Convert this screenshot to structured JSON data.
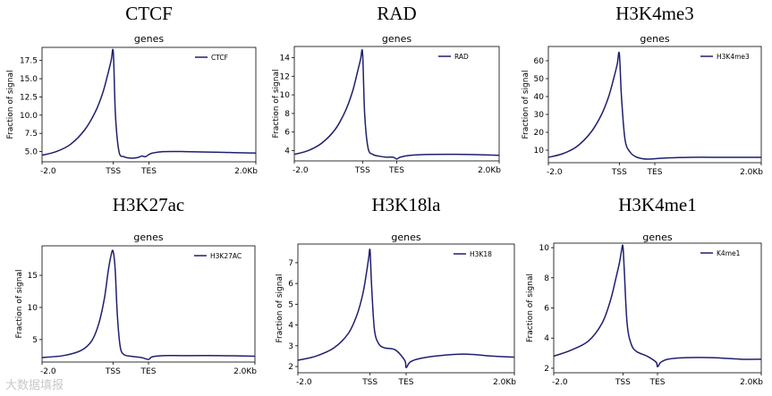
{
  "chart_data": [
    {
      "type": "line",
      "title": "CTCF",
      "subtitle": "genes",
      "ylabel": "Fraction of signal",
      "legend": "CTCF",
      "legend_position": "top-right",
      "ylim": [
        3.6,
        19.3
      ],
      "yticks": [
        5.0,
        7.5,
        10.0,
        12.5,
        15.0,
        17.5
      ],
      "ytick_labels": [
        "5.0",
        "7.5",
        "10.0",
        "12.5",
        "15.0",
        "17.5"
      ],
      "xticks": [
        0,
        100,
        150,
        300
      ],
      "xtick_labels": [
        "-2.0",
        "TSS",
        "TES",
        "2.0Kb"
      ],
      "series": [
        {
          "name": "CTCF",
          "x": [
            0,
            20,
            40,
            60,
            75,
            85,
            92,
            97,
            100,
            103,
            108,
            115,
            125,
            135,
            140,
            145,
            150,
            155,
            170,
            200,
            250,
            300
          ],
          "y": [
            4.5,
            5.0,
            6.0,
            8.0,
            10.5,
            13.0,
            15.5,
            17.5,
            18.6,
            10.0,
            5.0,
            4.3,
            4.1,
            4.2,
            4.4,
            4.3,
            4.6,
            4.8,
            5.0,
            5.0,
            4.9,
            4.8
          ]
        }
      ]
    },
    {
      "type": "line",
      "title": "RAD",
      "subtitle": "genes",
      "ylabel": "Fraction of signal",
      "legend": "RAD",
      "legend_position": "top-right",
      "ylim": [
        2.9,
        15.2
      ],
      "yticks": [
        4,
        6,
        8,
        10,
        12,
        14
      ],
      "ytick_labels": [
        "4",
        "6",
        "8",
        "10",
        "12",
        "14"
      ],
      "xticks": [
        0,
        100,
        150,
        300
      ],
      "xtick_labels": [
        "-2.0",
        "TSS",
        "TES",
        "2.0Kb"
      ],
      "series": [
        {
          "name": "RAD",
          "x": [
            0,
            20,
            40,
            60,
            75,
            85,
            92,
            97,
            100,
            103,
            108,
            115,
            125,
            135,
            145,
            150,
            155,
            170,
            200,
            250,
            300
          ],
          "y": [
            3.6,
            4.0,
            4.8,
            6.3,
            8.3,
            10.3,
            12.3,
            13.8,
            14.5,
            8.0,
            4.3,
            3.6,
            3.4,
            3.3,
            3.3,
            3.1,
            3.3,
            3.5,
            3.6,
            3.6,
            3.5
          ]
        }
      ]
    },
    {
      "type": "line",
      "title": "H3K4me3",
      "subtitle": "genes",
      "ylabel": "Fraction of signal",
      "legend": "H3K4me3",
      "legend_position": "top-right",
      "ylim": [
        3,
        68
      ],
      "yticks": [
        10,
        20,
        30,
        40,
        50,
        60
      ],
      "ytick_labels": [
        "10",
        "20",
        "30",
        "40",
        "50",
        "60"
      ],
      "xticks": [
        0,
        100,
        150,
        300
      ],
      "xtick_labels": [
        "-2.0",
        "TSS",
        "TES",
        "2.0Kb"
      ],
      "series": [
        {
          "name": "H3K4me3",
          "x": [
            0,
            20,
            40,
            60,
            75,
            85,
            92,
            97,
            100,
            103,
            108,
            115,
            125,
            140,
            160,
            200,
            250,
            300
          ],
          "y": [
            6,
            8,
            12,
            20,
            30,
            40,
            50,
            58,
            64,
            40,
            16,
            9,
            6,
            5,
            5.5,
            6,
            6,
            6
          ]
        }
      ]
    },
    {
      "type": "line",
      "title": "H3K27ac",
      "subtitle": "genes",
      "ylabel": "Fraction of signal",
      "legend": "H3K27AC",
      "legend_position": "top-right",
      "ylim": [
        1.5,
        19.6
      ],
      "yticks": [
        5,
        10,
        15
      ],
      "ytick_labels": [
        "5",
        "10",
        "15"
      ],
      "xticks": [
        0,
        100,
        150,
        300
      ],
      "xtick_labels": [
        "-2.0",
        "TSS",
        "TES",
        "2.0Kb"
      ],
      "series": [
        {
          "name": "H3K27AC",
          "x": [
            0,
            30,
            55,
            70,
            80,
            88,
            93,
            97,
            100,
            103,
            106,
            110,
            115,
            125,
            140,
            150,
            155,
            170,
            200,
            250,
            300
          ],
          "y": [
            2.2,
            2.5,
            3.3,
            4.8,
            7.5,
            11.5,
            15.5,
            18.0,
            18.8,
            16.0,
            9.0,
            4.0,
            2.7,
            2.4,
            2.2,
            1.9,
            2.3,
            2.5,
            2.5,
            2.5,
            2.4
          ]
        }
      ]
    },
    {
      "type": "line",
      "title": "H3K18la",
      "subtitle": "genes",
      "ylabel": "Fraction of signal",
      "legend": "H3K18",
      "legend_position": "top-right",
      "ylim": [
        1.7,
        7.9
      ],
      "yticks": [
        2,
        3,
        4,
        5,
        6,
        7
      ],
      "ytick_labels": [
        "2",
        "3",
        "4",
        "5",
        "6",
        "7"
      ],
      "xticks": [
        0,
        100,
        150,
        300
      ],
      "xtick_labels": [
        "-2.0",
        "TSS",
        "TES",
        "2.0Kb"
      ],
      "series": [
        {
          "name": "H3K18",
          "x": [
            0,
            25,
            50,
            70,
            82,
            90,
            95,
            98,
            100,
            102,
            106,
            112,
            120,
            135,
            148,
            150,
            155,
            165,
            190,
            230,
            270,
            300
          ],
          "y": [
            2.3,
            2.5,
            2.9,
            3.6,
            4.5,
            5.5,
            6.5,
            7.2,
            7.6,
            6.0,
            3.8,
            3.1,
            2.9,
            2.8,
            2.3,
            1.95,
            2.2,
            2.35,
            2.5,
            2.6,
            2.5,
            2.45
          ]
        }
      ]
    },
    {
      "type": "line",
      "title": "H3K4me1",
      "subtitle": "genes",
      "ylabel": "Fraction of signal",
      "legend": "K4me1",
      "legend_position": "top-right",
      "ylim": [
        1.7,
        10.3
      ],
      "yticks": [
        2,
        4,
        6,
        8,
        10
      ],
      "ytick_labels": [
        "2",
        "4",
        "6",
        "8",
        "10"
      ],
      "xticks": [
        0,
        100,
        150,
        300
      ],
      "xtick_labels": [
        "-2.0",
        "TSS",
        "TES",
        "2.0Kb"
      ],
      "series": [
        {
          "name": "K4me1",
          "x": [
            0,
            25,
            50,
            70,
            82,
            90,
            95,
            98,
            100,
            102,
            106,
            112,
            120,
            135,
            148,
            150,
            155,
            165,
            190,
            230,
            270,
            300
          ],
          "y": [
            2.8,
            3.2,
            3.8,
            5.0,
            6.5,
            8.0,
            9.0,
            9.8,
            10.1,
            8.5,
            5.0,
            3.6,
            3.1,
            2.8,
            2.4,
            2.1,
            2.4,
            2.6,
            2.7,
            2.7,
            2.6,
            2.6
          ]
        }
      ]
    }
  ],
  "watermark": "大数据填报"
}
